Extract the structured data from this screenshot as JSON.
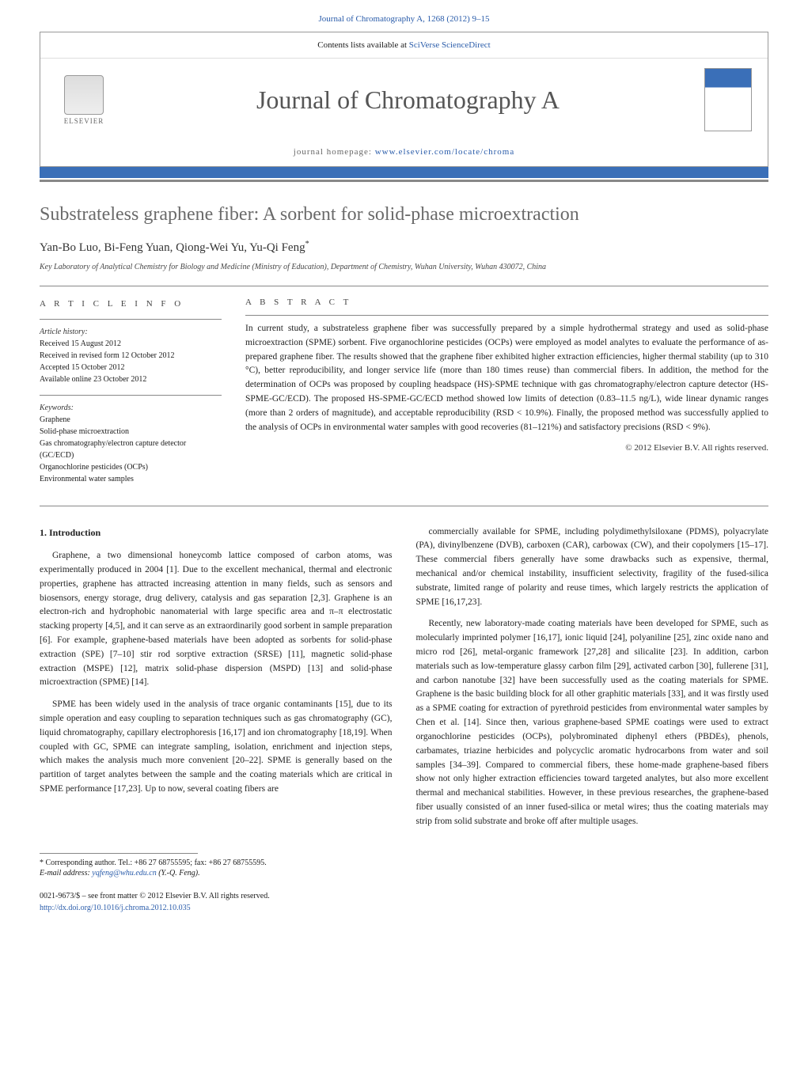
{
  "header": {
    "journal_ref": "Journal of Chromatography A, 1268 (2012) 9–15",
    "contents_prefix": "Contents lists available at ",
    "contents_link": "SciVerse ScienceDirect",
    "journal_title": "Journal of Chromatography A",
    "homepage_prefix": "journal homepage: ",
    "homepage_url": "www.elsevier.com/locate/chroma",
    "publisher": "ELSEVIER"
  },
  "article": {
    "title": "Substrateless graphene fiber: A sorbent for solid-phase microextraction",
    "authors": "Yan-Bo Luo, Bi-Feng Yuan, Qiong-Wei Yu, Yu-Qi Feng",
    "author_marker": "*",
    "affiliation": "Key Laboratory of Analytical Chemistry for Biology and Medicine (Ministry of Education), Department of Chemistry, Wuhan University, Wuhan 430072, China"
  },
  "info": {
    "heading": "A R T I C L E   I N F O",
    "history_label": "Article history:",
    "received": "Received 15 August 2012",
    "revised": "Received in revised form 12 October 2012",
    "accepted": "Accepted 15 October 2012",
    "online": "Available online 23 October 2012",
    "keywords_label": "Keywords:",
    "keywords": [
      "Graphene",
      "Solid-phase microextraction",
      "Gas chromatography/electron capture detector (GC/ECD)",
      "Organochlorine pesticides (OCPs)",
      "Environmental water samples"
    ]
  },
  "abstract": {
    "heading": "A B S T R A C T",
    "text": "In current study, a substrateless graphene fiber was successfully prepared by a simple hydrothermal strategy and used as solid-phase microextraction (SPME) sorbent. Five organochlorine pesticides (OCPs) were employed as model analytes to evaluate the performance of as-prepared graphene fiber. The results showed that the graphene fiber exhibited higher extraction efficiencies, higher thermal stability (up to 310 °C), better reproducibility, and longer service life (more than 180 times reuse) than commercial fibers. In addition, the method for the determination of OCPs was proposed by coupling headspace (HS)-SPME technique with gas chromatography/electron capture detector (HS-SPME-GC/ECD). The proposed HS-SPME-GC/ECD method showed low limits of detection (0.83–11.5 ng/L), wide linear dynamic ranges (more than 2 orders of magnitude), and acceptable reproducibility (RSD < 10.9%). Finally, the proposed method was successfully applied to the analysis of OCPs in environmental water samples with good recoveries (81–121%) and satisfactory precisions (RSD < 9%).",
    "copyright": "© 2012 Elsevier B.V. All rights reserved."
  },
  "body": {
    "section_number": "1.",
    "section_title": "Introduction",
    "col1": {
      "p1": "Graphene, a two dimensional honeycomb lattice composed of carbon atoms, was experimentally produced in 2004 [1]. Due to the excellent mechanical, thermal and electronic properties, graphene has attracted increasing attention in many fields, such as sensors and biosensors, energy storage, drug delivery, catalysis and gas separation [2,3]. Graphene is an electron-rich and hydrophobic nanomaterial with large specific area and π–π electrostatic stacking property [4,5], and it can serve as an extraordinarily good sorbent in sample preparation [6]. For example, graphene-based materials have been adopted as sorbents for solid-phase extraction (SPE) [7–10] stir rod sorptive extraction (SRSE) [11], magnetic solid-phase extraction (MSPE) [12], matrix solid-phase dispersion (MSPD) [13] and solid-phase microextraction (SPME) [14].",
      "p2": "SPME has been widely used in the analysis of trace organic contaminants [15], due to its simple operation and easy coupling to separation techniques such as gas chromatography (GC), liquid chromatography, capillary electrophoresis [16,17] and ion chromatography [18,19]. When coupled with GC, SPME can integrate sampling, isolation, enrichment and injection steps, which makes the analysis much more convenient [20–22]. SPME is generally based on the partition of target analytes between the sample and the coating materials which are critical in SPME performance [17,23]. Up to now, several coating fibers are"
    },
    "col2": {
      "p1": "commercially available for SPME, including polydimethylsiloxane (PDMS), polyacrylate (PA), divinylbenzene (DVB), carboxen (CAR), carbowax (CW), and their copolymers [15–17]. These commercial fibers generally have some drawbacks such as expensive, thermal, mechanical and/or chemical instability, insufficient selectivity, fragility of the fused-silica substrate, limited range of polarity and reuse times, which largely restricts the application of SPME [16,17,23].",
      "p2": "Recently, new laboratory-made coating materials have been developed for SPME, such as molecularly imprinted polymer [16,17], ionic liquid [24], polyaniline [25], zinc oxide nano and micro rod [26], metal-organic framework [27,28] and silicalite [23]. In addition, carbon materials such as low-temperature glassy carbon film [29], activated carbon [30], fullerene [31], and carbon nanotube [32] have been successfully used as the coating materials for SPME. Graphene is the basic building block for all other graphitic materials [33], and it was firstly used as a SPME coating for extraction of pyrethroid pesticides from environmental water samples by Chen et al. [14]. Since then, various graphene-based SPME coatings were used to extract organochlorine pesticides (OCPs), polybrominated diphenyl ethers (PBDEs), phenols, carbamates, triazine herbicides and polycyclic aromatic hydrocarbons from water and soil samples [34–39]. Compared to commercial fibers, these home-made graphene-based fibers show not only higher extraction efficiencies toward targeted analytes, but also more excellent thermal and mechanical stabilities. However, in these previous researches, the graphene-based fiber usually consisted of an inner fused-silica or metal wires; thus the coating materials may strip from solid substrate and broke off after multiple usages."
    }
  },
  "footer": {
    "corresponding": "* Corresponding author. Tel.: +86 27 68755595; fax: +86 27 68755595.",
    "email_label": "E-mail address: ",
    "email": "yqfeng@whu.edu.cn",
    "email_name": " (Y.-Q. Feng).",
    "copyright": "0021-9673/$ – see front matter © 2012 Elsevier B.V. All rights reserved.",
    "doi": "http://dx.doi.org/10.1016/j.chroma.2012.10.035"
  },
  "colors": {
    "brand_blue": "#3a6fb8",
    "link_blue": "#2a5caa",
    "gray_bar": "#888888",
    "title_gray": "#6a6a6a"
  }
}
